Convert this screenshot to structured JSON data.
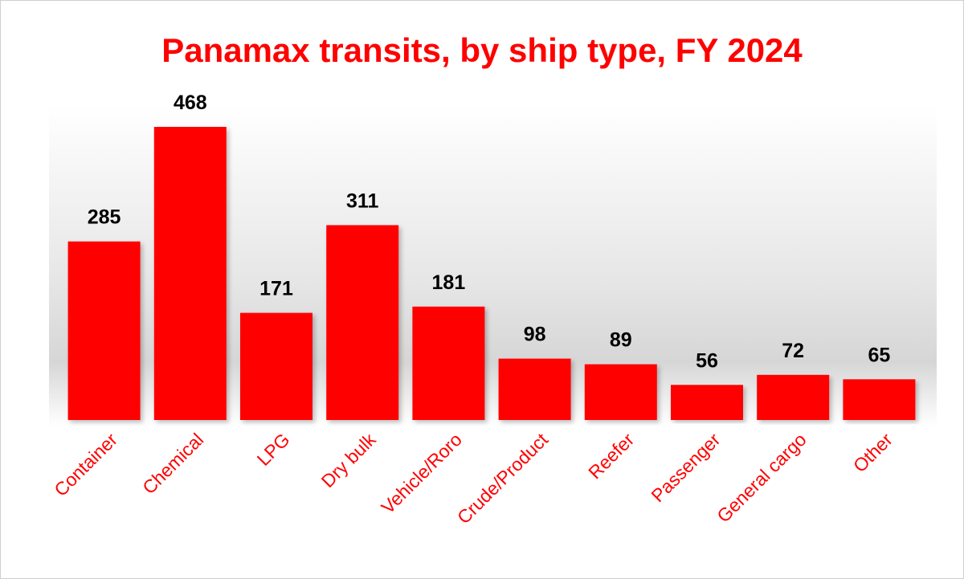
{
  "chart_data": {
    "type": "bar",
    "title": "Panamax transits, by ship type, FY 2024",
    "categories": [
      "Container",
      "Chemical",
      "LPG",
      "Dry bulk",
      "Vehicle/Roro",
      "Crude/Product",
      "Reefer",
      "Passenger",
      "General cargo",
      "Other"
    ],
    "values": [
      285,
      468,
      171,
      311,
      181,
      98,
      89,
      56,
      72,
      65
    ],
    "data_labels": [
      "285",
      "468",
      "171",
      "311",
      "181",
      "98",
      "89",
      "56",
      "72",
      "65"
    ],
    "xlabel": "",
    "ylabel": "",
    "ylim": [
      0,
      468
    ],
    "grid": false,
    "legend": "none"
  },
  "colors": {
    "bar": "#ff0000",
    "title": "#ff0000",
    "category_label": "#ff0000",
    "data_label": "#000000",
    "floor_shadow": "#d4d4d4"
  }
}
